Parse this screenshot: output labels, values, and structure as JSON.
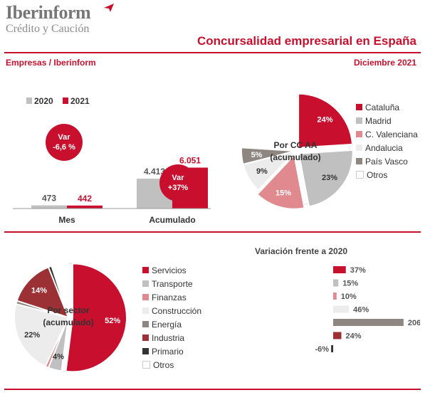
{
  "header": {
    "brand": "Iberinform",
    "brand_sub": "Crédito y Caución",
    "title": "Concursalidad empresarial en España",
    "left_label": "Empresas / Iberinform",
    "right_label": "Diciembre 2021"
  },
  "colors": {
    "accent": "#c8102e",
    "grey": "#c0c0c0"
  },
  "chart_data": [
    {
      "type": "bar",
      "categories": [
        "Mes",
        "Acumulado"
      ],
      "series": [
        {
          "name": "2020",
          "values": [
            473,
            4413
          ],
          "labels": [
            "473",
            "4.413"
          ],
          "color": "#c0c0c0"
        },
        {
          "name": "2021",
          "values": [
            442,
            6051
          ],
          "labels": [
            "442",
            "6.051"
          ],
          "color": "#c8102e"
        }
      ],
      "annotations": [
        {
          "category": "Mes",
          "line1": "Var",
          "line2": "-6,6 %"
        },
        {
          "category": "Acumulado",
          "line1": "Var",
          "line2": "+37%"
        }
      ],
      "legend": "top-left"
    },
    {
      "type": "pie",
      "center_label": [
        "Por CC AA",
        "(acumulado)"
      ],
      "slices": [
        {
          "name": "Cataluña",
          "value": 24,
          "label": "24%",
          "color": "#c8102e"
        },
        {
          "name": "Madrid",
          "value": 23,
          "label": "23%",
          "color": "#c0c0c0"
        },
        {
          "name": "C. Valenciana",
          "value": 15,
          "label": "15%",
          "color": "#e08a8f"
        },
        {
          "name": "Andalucia",
          "value": 9,
          "label": "9%",
          "color": "#ececec"
        },
        {
          "name": "País Vasco",
          "value": 5,
          "label": "5%",
          "color": "#8e8680"
        },
        {
          "name": "Otros",
          "value": 24,
          "label": "",
          "color": "#ffffff"
        }
      ],
      "legend": "right"
    },
    {
      "type": "pie",
      "center_label": [
        "Por sector",
        "(acumulado)"
      ],
      "slices": [
        {
          "name": "Servicios",
          "value": 52,
          "label": "52%",
          "color": "#c8102e"
        },
        {
          "name": "Transporte",
          "value": 4,
          "label": "4%",
          "color": "#c0c0c0"
        },
        {
          "name": "Finanzas",
          "value": 1,
          "label": "",
          "color": "#e08a8f"
        },
        {
          "name": "Construcción",
          "value": 22,
          "label": "22%",
          "color": "#ececec"
        },
        {
          "name": "Energía",
          "value": 1,
          "label": "",
          "color": "#8e8680"
        },
        {
          "name": "Industria",
          "value": 14,
          "label": "14%",
          "color": "#9b3134"
        },
        {
          "name": "Primario",
          "value": 1,
          "label": "",
          "color": "#333333"
        },
        {
          "name": "Otros",
          "value": 5,
          "label": "",
          "color": "#ffffff"
        }
      ],
      "legend": "right"
    },
    {
      "type": "bar",
      "orientation": "horizontal",
      "title": "Variación frente a 2020",
      "categories": [
        "Servicios",
        "Transporte",
        "Finanzas",
        "Construcción",
        "Energía",
        "Industria",
        "Primario"
      ],
      "values": [
        37,
        15,
        10,
        46,
        206,
        24,
        -6
      ],
      "labels": [
        "37%",
        "15%",
        "10%",
        "46%",
        "206%",
        "24%",
        "-6%"
      ],
      "colors": [
        "#c8102e",
        "#c0c0c0",
        "#e08a8f",
        "#ececec",
        "#8e8680",
        "#9b3134",
        "#333333"
      ]
    }
  ]
}
